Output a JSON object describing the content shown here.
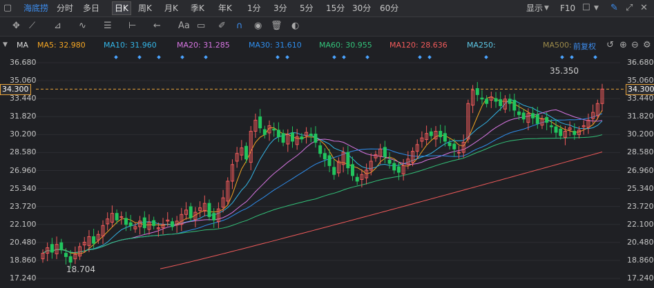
{
  "stock": {
    "name": "海底捞"
  },
  "period_tabs": [
    "分时",
    "多日",
    "日K",
    "周K",
    "月K",
    "季K",
    "年K",
    "1分",
    "3分",
    "5分",
    "15分",
    "30分",
    "60分"
  ],
  "active_tab": "日K",
  "right_tools": {
    "display": "显示",
    "f10": "F10"
  },
  "ma_bar": {
    "label": "MA",
    "items": [
      {
        "text": "MA5: 32.980",
        "color": "#f5a623"
      },
      {
        "text": "MA10: 31.960",
        "color": "#34b6e8"
      },
      {
        "text": "MA20: 31.285",
        "color": "#d876e3"
      },
      {
        "text": "MA30: 31.610",
        "color": "#2f8fef"
      },
      {
        "text": "MA60: 30.955",
        "color": "#33c37a"
      },
      {
        "text": "MA120: 28.636",
        "color": "#f25b5b"
      },
      {
        "text": "MA250:",
        "color": "#5ecae8"
      },
      {
        "text": "MA500:",
        "color": "#9c8a4a"
      }
    ],
    "adjust": "前复权"
  },
  "y_axis": [
    "36.680",
    "35.060",
    "33.440",
    "31.820",
    "30.200",
    "28.580",
    "26.960",
    "25.340",
    "23.720",
    "22.100",
    "20.480",
    "18.860",
    "17.240"
  ],
  "current_price": "34.300",
  "annotations": {
    "high": "35.350",
    "low": "18.704"
  },
  "chart_data": {
    "type": "candlestick",
    "ylim": [
      17.24,
      36.68
    ],
    "candles_approx_close": [
      19.5,
      20.0,
      19.6,
      20.3,
      19.8,
      19.2,
      18.7,
      19.4,
      20.1,
      20.5,
      21.0,
      20.4,
      21.2,
      22.0,
      22.6,
      23.1,
      22.5,
      22.8,
      22.1,
      22.0,
      21.9,
      22.4,
      21.8,
      22.3,
      22.0,
      21.8,
      22.1,
      22.5,
      21.9,
      22.4,
      23.0,
      23.4,
      22.7,
      23.2,
      23.6,
      24.0,
      22.8,
      22.5,
      23.5,
      24.5,
      26.0,
      27.5,
      28.5,
      29.0,
      28.0,
      30.5,
      31.5,
      30.8,
      30.2,
      31.0,
      30.6,
      30.0,
      29.5,
      30.2,
      29.6,
      30.0,
      29.8,
      30.4,
      30.1,
      29.5,
      28.5,
      28.0,
      27.4,
      26.6,
      27.8,
      28.6,
      27.2,
      26.5,
      26.0,
      26.6,
      27.0,
      27.8,
      28.4,
      28.9,
      28.2,
      27.6,
      27.0,
      26.8,
      27.4,
      28.0,
      28.7,
      29.3,
      29.9,
      30.3,
      30.1,
      30.5,
      30.0,
      29.6,
      29.2,
      28.9,
      28.6,
      29.5,
      33.0,
      34.2,
      33.8,
      33.4,
      33.0,
      33.6,
      33.2,
      32.8,
      33.4,
      33.0,
      32.4,
      32.0,
      31.6,
      32.1,
      31.7,
      31.2,
      31.6,
      31.3,
      30.9,
      30.4,
      30.1,
      30.5,
      30.8,
      30.2,
      30.6,
      31.0,
      31.5,
      32.2,
      33.0,
      34.3
    ],
    "ma_series_names": [
      "MA5",
      "MA10",
      "MA20",
      "MA30",
      "MA60",
      "MA120"
    ]
  }
}
